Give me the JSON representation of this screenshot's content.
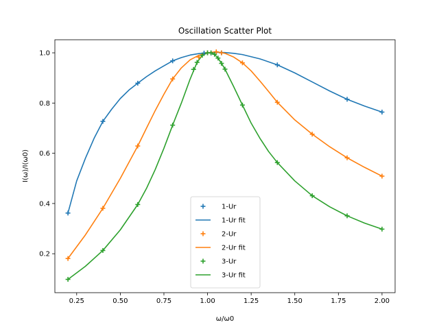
{
  "chart_data": {
    "type": "scatter",
    "title": "Oscillation Scatter Plot",
    "xlabel": "ω/ω0",
    "ylabel": "I(ω)/I(ω0)",
    "xlim": [
      0.125,
      2.075
    ],
    "ylim": [
      0.045,
      1.052
    ],
    "x_ticks": [
      0.25,
      0.5,
      0.75,
      1.0,
      1.25,
      1.5,
      1.75,
      2.0
    ],
    "x_tick_labels": [
      "0.25",
      "0.50",
      "0.75",
      "1.00",
      "1.25",
      "1.50",
      "1.75",
      "2.00"
    ],
    "y_ticks": [
      0.2,
      0.4,
      0.6,
      0.8,
      1.0
    ],
    "y_tick_labels": [
      "0.2",
      "0.4",
      "0.6",
      "0.8",
      "1.0"
    ],
    "grid": false,
    "legend_position": "lower-center",
    "series": [
      {
        "name": "1-Ur",
        "color": "#1f77b4",
        "points": [
          [
            0.2,
            0.362
          ],
          [
            0.4,
            0.727
          ],
          [
            0.6,
            0.879
          ],
          [
            0.8,
            0.968
          ],
          [
            0.98,
            0.999
          ],
          [
            1.0,
            1.0
          ],
          [
            1.02,
            0.999
          ],
          [
            1.08,
            1.0
          ],
          [
            1.4,
            0.952
          ],
          [
            1.8,
            0.815
          ],
          [
            2.0,
            0.764
          ]
        ]
      },
      {
        "name": "2-Ur",
        "color": "#ff7f0e",
        "points": [
          [
            0.2,
            0.181
          ],
          [
            0.4,
            0.381
          ],
          [
            0.6,
            0.629
          ],
          [
            0.8,
            0.896
          ],
          [
            0.95,
            0.983
          ],
          [
            1.0,
            1.0
          ],
          [
            1.05,
            1.004
          ],
          [
            1.08,
            1.0
          ],
          [
            1.2,
            0.96
          ],
          [
            1.4,
            0.803
          ],
          [
            1.6,
            0.676
          ],
          [
            1.8,
            0.582
          ],
          [
            2.0,
            0.509
          ]
        ]
      },
      {
        "name": "3-Ur",
        "color": "#2ca02c",
        "points": [
          [
            0.2,
            0.098
          ],
          [
            0.4,
            0.213
          ],
          [
            0.6,
            0.396
          ],
          [
            0.8,
            0.712
          ],
          [
            0.92,
            0.934
          ],
          [
            0.94,
            0.962
          ],
          [
            0.97,
            0.99
          ],
          [
            1.0,
            1.0
          ],
          [
            1.02,
            1.0
          ],
          [
            1.04,
            0.994
          ],
          [
            1.06,
            0.979
          ],
          [
            1.08,
            0.958
          ],
          [
            1.1,
            0.935
          ],
          [
            1.2,
            0.792
          ],
          [
            1.4,
            0.563
          ],
          [
            1.6,
            0.431
          ],
          [
            1.8,
            0.351
          ],
          [
            2.0,
            0.298
          ]
        ]
      }
    ],
    "fits": [
      {
        "name": "1-Ur fit",
        "color": "#1f77b4",
        "points": [
          [
            0.2,
            0.362
          ],
          [
            0.25,
            0.49
          ],
          [
            0.3,
            0.58
          ],
          [
            0.35,
            0.66
          ],
          [
            0.4,
            0.727
          ],
          [
            0.45,
            0.775
          ],
          [
            0.5,
            0.818
          ],
          [
            0.55,
            0.852
          ],
          [
            0.6,
            0.879
          ],
          [
            0.65,
            0.905
          ],
          [
            0.7,
            0.928
          ],
          [
            0.75,
            0.948
          ],
          [
            0.8,
            0.968
          ],
          [
            0.85,
            0.981
          ],
          [
            0.9,
            0.991
          ],
          [
            0.95,
            0.997
          ],
          [
            1.0,
            1.0
          ],
          [
            1.05,
            1.002
          ],
          [
            1.1,
            1.001
          ],
          [
            1.15,
            0.998
          ],
          [
            1.2,
            0.993
          ],
          [
            1.3,
            0.976
          ],
          [
            1.4,
            0.952
          ],
          [
            1.5,
            0.92
          ],
          [
            1.6,
            0.884
          ],
          [
            1.7,
            0.848
          ],
          [
            1.8,
            0.815
          ],
          [
            1.9,
            0.788
          ],
          [
            2.0,
            0.764
          ]
        ]
      },
      {
        "name": "2-Ur fit",
        "color": "#ff7f0e",
        "points": [
          [
            0.2,
            0.181
          ],
          [
            0.3,
            0.275
          ],
          [
            0.4,
            0.381
          ],
          [
            0.5,
            0.5
          ],
          [
            0.6,
            0.629
          ],
          [
            0.65,
            0.7
          ],
          [
            0.7,
            0.77
          ],
          [
            0.75,
            0.835
          ],
          [
            0.8,
            0.896
          ],
          [
            0.85,
            0.94
          ],
          [
            0.9,
            0.972
          ],
          [
            0.95,
            0.99
          ],
          [
            1.0,
            1.0
          ],
          [
            1.05,
            1.004
          ],
          [
            1.1,
            0.998
          ],
          [
            1.15,
            0.983
          ],
          [
            1.2,
            0.96
          ],
          [
            1.25,
            0.928
          ],
          [
            1.3,
            0.888
          ],
          [
            1.35,
            0.846
          ],
          [
            1.4,
            0.803
          ],
          [
            1.5,
            0.733
          ],
          [
            1.6,
            0.676
          ],
          [
            1.7,
            0.626
          ],
          [
            1.8,
            0.582
          ],
          [
            1.9,
            0.544
          ],
          [
            2.0,
            0.509
          ]
        ]
      },
      {
        "name": "3-Ur fit",
        "color": "#2ca02c",
        "points": [
          [
            0.2,
            0.098
          ],
          [
            0.3,
            0.15
          ],
          [
            0.4,
            0.213
          ],
          [
            0.5,
            0.295
          ],
          [
            0.6,
            0.396
          ],
          [
            0.65,
            0.46
          ],
          [
            0.7,
            0.535
          ],
          [
            0.75,
            0.62
          ],
          [
            0.8,
            0.712
          ],
          [
            0.85,
            0.8
          ],
          [
            0.9,
            0.895
          ],
          [
            0.94,
            0.962
          ],
          [
            0.97,
            0.99
          ],
          [
            1.0,
            1.0
          ],
          [
            1.02,
            1.0
          ],
          [
            1.04,
            0.994
          ],
          [
            1.06,
            0.979
          ],
          [
            1.08,
            0.958
          ],
          [
            1.1,
            0.935
          ],
          [
            1.15,
            0.865
          ],
          [
            1.2,
            0.792
          ],
          [
            1.25,
            0.72
          ],
          [
            1.3,
            0.66
          ],
          [
            1.35,
            0.607
          ],
          [
            1.4,
            0.563
          ],
          [
            1.5,
            0.49
          ],
          [
            1.6,
            0.431
          ],
          [
            1.7,
            0.387
          ],
          [
            1.8,
            0.351
          ],
          [
            1.9,
            0.322
          ],
          [
            2.0,
            0.298
          ]
        ]
      }
    ],
    "legend": [
      {
        "label": "1-Ur",
        "kind": "marker",
        "color": "#1f77b4"
      },
      {
        "label": "1-Ur fit",
        "kind": "line",
        "color": "#1f77b4"
      },
      {
        "label": "2-Ur",
        "kind": "marker",
        "color": "#ff7f0e"
      },
      {
        "label": "2-Ur fit",
        "kind": "line",
        "color": "#ff7f0e"
      },
      {
        "label": "3-Ur",
        "kind": "marker",
        "color": "#2ca02c"
      },
      {
        "label": "3-Ur fit",
        "kind": "line",
        "color": "#2ca02c"
      }
    ]
  }
}
